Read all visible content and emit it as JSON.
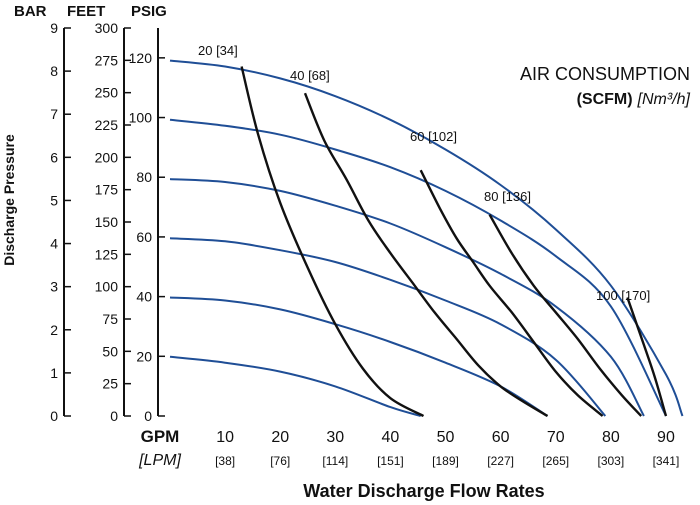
{
  "chart_data": {
    "type": "line",
    "title": "",
    "left_axes": [
      {
        "header": "BAR",
        "ticks": [
          "9",
          "8",
          "7",
          "6",
          "5",
          "4",
          "3",
          "2",
          "1",
          "0"
        ],
        "range": [
          0,
          9
        ]
      },
      {
        "header": "FEET",
        "ticks": [
          "300",
          "275",
          "250",
          "225",
          "200",
          "175",
          "150",
          "125",
          "100",
          "75",
          "50",
          "25",
          "0"
        ],
        "range": [
          0,
          300
        ]
      },
      {
        "header": "PSIG",
        "ticks": [
          "120",
          "100",
          "80",
          "60",
          "40",
          "20",
          "0"
        ],
        "range": [
          0,
          130
        ]
      }
    ],
    "ylabel": "Discharge Pressure",
    "xlabel": "Water Discharge Flow Rates",
    "x_unit_primary": "GPM",
    "x_unit_secondary": "[LPM]",
    "x_ticks_gpm": [
      "10",
      "20",
      "30",
      "40",
      "50",
      "60",
      "70",
      "80",
      "90"
    ],
    "x_ticks_lpm": [
      "[38]",
      "[76]",
      "[114]",
      "[151]",
      "[189]",
      "[227]",
      "[265]",
      "[303]",
      "[341]"
    ],
    "xlim": [
      0,
      94
    ],
    "ylim": [
      0,
      130
    ],
    "grid": false,
    "legend": {
      "line1": "AIR CONSUMPTION",
      "line2_bold": "(SCFM)",
      "line2_italic": "[Nm³/h]",
      "placement": "top-right"
    },
    "colors": {
      "pressure_curves": "#1f4e96",
      "air_curves": "#111111"
    },
    "pressure_series": [
      {
        "x": [
          0,
          10,
          20,
          30,
          40,
          45.5
        ],
        "y": [
          20,
          18,
          15,
          10,
          3,
          0
        ]
      },
      {
        "x": [
          0,
          10,
          20,
          30,
          40,
          50,
          60,
          68.5
        ],
        "y": [
          40,
          39,
          36,
          31,
          25,
          18,
          10,
          0
        ]
      },
      {
        "x": [
          0,
          10,
          20,
          30,
          40,
          50,
          60,
          70,
          79
        ],
        "y": [
          60,
          59,
          56,
          52,
          46,
          39,
          31,
          19,
          0
        ]
      },
      {
        "x": [
          0,
          10,
          20,
          30,
          40,
          50,
          60,
          70,
          80,
          86
        ],
        "y": [
          80,
          79,
          76,
          71,
          65,
          57,
          48,
          37,
          20,
          0
        ]
      },
      {
        "x": [
          0,
          10,
          20,
          30,
          40,
          50,
          60,
          70,
          80,
          90
        ],
        "y": [
          100,
          98,
          95,
          90,
          84,
          76,
          66,
          54,
          37,
          0
        ]
      },
      {
        "x": [
          0,
          10,
          20,
          30,
          40,
          50,
          60,
          70,
          80,
          90,
          93
        ],
        "y": [
          120,
          118,
          114,
          108,
          100,
          90,
          78,
          63,
          44,
          14,
          0
        ]
      }
    ],
    "air_series": [
      {
        "label": "20 [34]",
        "x": [
          13,
          16,
          20,
          25,
          30,
          35,
          40,
          46
        ],
        "y": [
          118,
          95,
          72,
          50,
          31,
          16,
          6,
          0
        ]
      },
      {
        "label": "40 [68]",
        "x": [
          24.5,
          28,
          32,
          36,
          40,
          44,
          48,
          52,
          56,
          60,
          64,
          68.5
        ],
        "y": [
          109,
          93,
          80,
          66,
          55,
          45,
          35,
          26,
          17,
          10,
          5,
          0
        ]
      },
      {
        "label": "60 [102]",
        "x": [
          45.5,
          49,
          52,
          55,
          58,
          62,
          66,
          70,
          74,
          78.5
        ],
        "y": [
          83,
          70,
          60,
          52,
          44,
          35,
          25,
          15,
          7,
          0
        ]
      },
      {
        "label": "80 [136]",
        "x": [
          58,
          62,
          66,
          70,
          74,
          78,
          82,
          85.5
        ],
        "y": [
          68,
          55,
          44,
          35,
          26,
          16,
          7,
          0
        ]
      },
      {
        "label": "100 [170]",
        "x": [
          83,
          86,
          88,
          90
        ],
        "y": [
          40,
          24,
          13,
          0
        ]
      }
    ]
  }
}
